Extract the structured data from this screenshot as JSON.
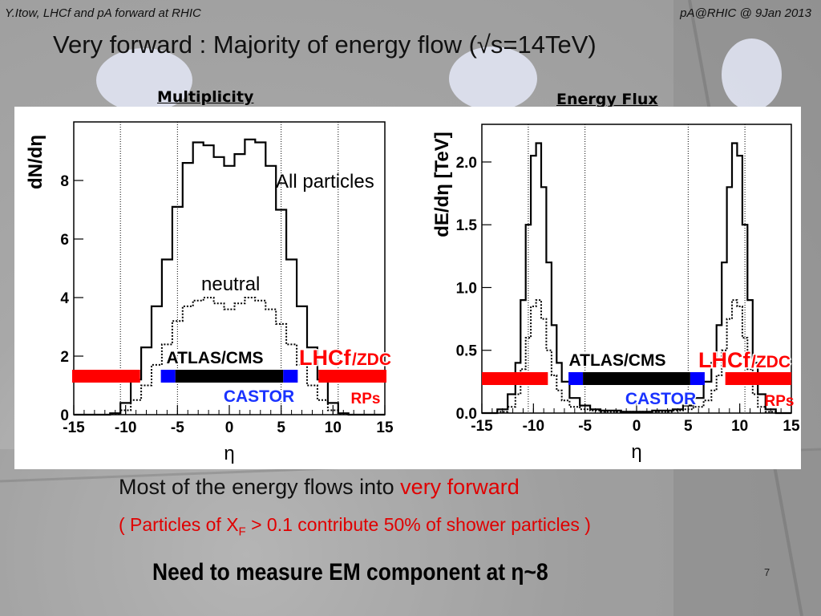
{
  "header": {
    "left": "Y.Itow,  LHCf and pA forward at RHIC",
    "right": "pA@RHIC @ 9Jan 2013"
  },
  "title": "Very forward : Majority of energy flow (√s=14TeV)",
  "colors": {
    "red": "#ff0000",
    "blue": "#0000ff",
    "black": "#000000",
    "castor": "#1a33ff",
    "lhcf": "#ff0000",
    "text_red": "#e00000"
  },
  "chart_data": [
    {
      "type": "line",
      "panel_title": "Multiplicity",
      "title": "",
      "xlabel": "η",
      "ylabel": "dN/dη",
      "xlim": [
        -15,
        15
      ],
      "ylim": [
        0,
        10
      ],
      "xticks": [
        -15,
        -10,
        -5,
        0,
        5,
        10,
        15
      ],
      "xtick_labels": [
        "-15",
        "-10",
        "-5",
        "0",
        "5",
        "10",
        "15"
      ],
      "yticks": [
        0,
        2,
        4,
        6,
        8
      ],
      "ytick_labels": [
        "0",
        "2",
        "4",
        "6",
        "8"
      ],
      "vlines": [
        -10.5,
        -5,
        5,
        10.5
      ],
      "x": [
        -15,
        -14,
        -13,
        -12,
        -11,
        -10,
        -9,
        -8,
        -7,
        -6,
        -5,
        -4,
        -3,
        -2,
        -1,
        0,
        1,
        2,
        3,
        4,
        5,
        6,
        7,
        8,
        9,
        10,
        11,
        12,
        13,
        14,
        15
      ],
      "series": [
        {
          "name": "All particles",
          "style": "solid",
          "values": [
            0,
            0,
            0,
            0,
            0.05,
            0.4,
            1.2,
            2.3,
            3.7,
            5.3,
            7.1,
            8.6,
            9.3,
            9.2,
            8.8,
            8.5,
            8.9,
            9.4,
            9.3,
            8.5,
            7.0,
            5.3,
            3.7,
            2.3,
            1.2,
            0.4,
            0.05,
            0,
            0,
            0,
            0
          ]
        },
        {
          "name": "neutral",
          "style": "dotted",
          "values": [
            0,
            0,
            0,
            0,
            0.02,
            0.15,
            0.5,
            1.0,
            1.7,
            2.4,
            3.2,
            3.7,
            3.9,
            4.0,
            3.8,
            3.6,
            3.8,
            4.0,
            3.9,
            3.6,
            3.1,
            2.4,
            1.7,
            1.0,
            0.5,
            0.15,
            0.02,
            0,
            0,
            0,
            0
          ]
        }
      ],
      "annotations": {
        "all": "All particles",
        "neutral": "neutral"
      },
      "detector_bars": [
        {
          "name": "LHCf/ZDC-left",
          "color": "red",
          "x0": -15,
          "x1": -8.6
        },
        {
          "name": "CASTOR-left",
          "color": "blue",
          "x0": -6.6,
          "x1": -5.2
        },
        {
          "name": "ATLAS/CMS",
          "color": "black",
          "x0": -5.2,
          "x1": 5.2
        },
        {
          "name": "CASTOR-right",
          "color": "blue",
          "x0": 5.2,
          "x1": 6.6
        },
        {
          "name": "LHCf/ZDC-right",
          "color": "red",
          "x0": 8.6,
          "x1": 15
        }
      ],
      "labels": {
        "atlas": "ATLAS/CMS",
        "lhcf": "LHCf",
        "zdc": "/ZDC",
        "castor": "CASTOR",
        "rps": "RPs"
      }
    },
    {
      "type": "line",
      "panel_title": "Energy Flux",
      "title": "",
      "xlabel": "η",
      "ylabel": "dE/dη [TeV]",
      "xlim": [
        -15,
        15
      ],
      "ylim": [
        0,
        2.3
      ],
      "xticks": [
        -15,
        -10,
        -5,
        0,
        5,
        10,
        15
      ],
      "xtick_labels": [
        "-15",
        "-10",
        "-5",
        "0",
        "5",
        "10",
        "15"
      ],
      "yticks": [
        0,
        0.5,
        1.0,
        1.5,
        2.0
      ],
      "ytick_labels": [
        "0.0",
        "0.5",
        "1.0",
        "1.5",
        "2.0"
      ],
      "vlines": [
        -10.5,
        -5,
        5,
        10.5
      ],
      "x": [
        -15,
        -14,
        -13,
        -12,
        -11.5,
        -11,
        -10.5,
        -10,
        -9.5,
        -9,
        -8.5,
        -8,
        -7.5,
        -7,
        -6,
        -5,
        -4,
        -3,
        -2,
        -1,
        0,
        1,
        2,
        3,
        4,
        5,
        6,
        7,
        7.5,
        8,
        8.5,
        9,
        9.5,
        10,
        10.5,
        11,
        11.5,
        12,
        13,
        14,
        15
      ],
      "series": [
        {
          "name": "",
          "style": "solid",
          "values": [
            0,
            0,
            0.03,
            0.15,
            0.4,
            0.9,
            1.5,
            2.05,
            2.15,
            1.8,
            1.2,
            0.7,
            0.4,
            0.25,
            0.12,
            0.06,
            0.03,
            0.02,
            0.02,
            0.01,
            0.01,
            0.01,
            0.02,
            0.02,
            0.03,
            0.06,
            0.12,
            0.25,
            0.4,
            0.7,
            1.2,
            1.8,
            2.15,
            2.05,
            1.5,
            0.9,
            0.4,
            0.15,
            0.03,
            0,
            0
          ]
        },
        {
          "name": "",
          "style": "dotted",
          "values": [
            0,
            0,
            0.01,
            0.05,
            0.15,
            0.35,
            0.6,
            0.85,
            0.9,
            0.75,
            0.5,
            0.3,
            0.18,
            0.1,
            0.05,
            0.03,
            0.02,
            0.01,
            0.01,
            0.01,
            0.01,
            0.01,
            0.01,
            0.01,
            0.02,
            0.03,
            0.05,
            0.1,
            0.18,
            0.3,
            0.5,
            0.75,
            0.9,
            0.85,
            0.6,
            0.35,
            0.15,
            0.05,
            0.01,
            0,
            0
          ]
        }
      ],
      "detector_bars": [
        {
          "name": "LHCf/ZDC-left",
          "color": "red",
          "x0": -15,
          "x1": -8.6
        },
        {
          "name": "CASTOR-left",
          "color": "blue",
          "x0": -6.6,
          "x1": -5.2
        },
        {
          "name": "ATLAS/CMS",
          "color": "black",
          "x0": -5.2,
          "x1": 5.2
        },
        {
          "name": "CASTOR-right",
          "color": "blue",
          "x0": 5.2,
          "x1": 6.6
        },
        {
          "name": "LHCf/ZDC-right",
          "color": "red",
          "x0": 8.6,
          "x1": 15
        }
      ],
      "labels": {
        "atlas": "ATLAS/CMS",
        "lhcf": "LHCf",
        "zdc": "/ZDC",
        "castor": "CASTOR",
        "rps": "RPs"
      }
    }
  ],
  "bullets": {
    "line1_a": "Most of the energy flows into ",
    "line1_b": "very forward",
    "line2_a": "( Particles of X",
    "line2_sub": "F",
    "line2_b": " > 0.1 contribute 50% of shower particles )"
  },
  "conclusion": "Need to measure EM component at η~8",
  "page_number": "7"
}
